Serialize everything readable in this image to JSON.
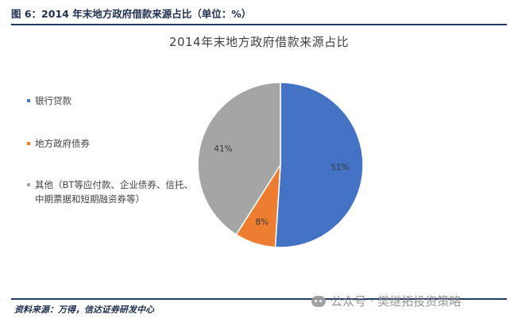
{
  "header": {
    "figure_caption": "图 6：2014 年末地方政府借款来源占比（单位：%）"
  },
  "footer": {
    "source": "资料来源：万得，信达证券研发中心"
  },
  "watermark": {
    "text": "公众号 · 樊继拓投资策略",
    "icon": "wechat-icon"
  },
  "colors": {
    "bank": "#4472C4",
    "bond": "#ED7D31",
    "other": "#A5A5A5",
    "rule": "#243A66"
  },
  "chart_data": {
    "type": "pie",
    "title": "2014年末地方政府借款来源占比",
    "legend_position": "left",
    "slices": [
      {
        "label": "银行贷款",
        "value": 51,
        "display": "51%",
        "color": "#4472C4"
      },
      {
        "label": "地方政府债券",
        "value": 8,
        "display": "8%",
        "color": "#ED7D31"
      },
      {
        "label": "其他（BT等应付款、企业债券、信托、中期票据和短期融资券等）",
        "value": 41,
        "display": "41%",
        "color": "#A5A5A5"
      }
    ]
  }
}
